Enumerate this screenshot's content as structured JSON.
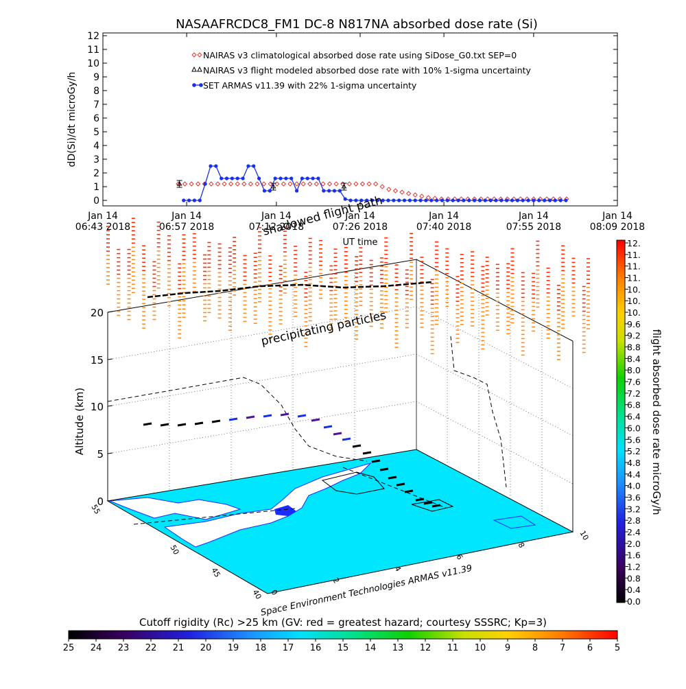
{
  "chart_data": [
    {
      "type": "line",
      "title": "NASAAFRCDC8_FM1 DC-8    N817NA absorbed dose rate (Si)",
      "ylabel": "dD(Si)/dt microGy/h",
      "xlabel": "UT time",
      "ylim": [
        0,
        12
      ],
      "yticks": [
        "0",
        "1",
        "2",
        "3",
        "4",
        "5",
        "6",
        "7",
        "8",
        "9",
        "10",
        "11",
        "12"
      ],
      "xlim_minutes": [
        403,
        489
      ],
      "xticks": [
        {
          "minute": 403,
          "line1": "Jan 14",
          "line2": "06:43 2018"
        },
        {
          "minute": 417,
          "line1": "Jan 14",
          "line2": "06:57 2018"
        },
        {
          "minute": 432,
          "line1": "Jan 14",
          "line2": "07:12 2018"
        },
        {
          "minute": 446,
          "line1": "Jan 14",
          "line2": "07:26 2018"
        },
        {
          "minute": 460,
          "line1": "Jan 14",
          "line2": "07:40 2018"
        },
        {
          "minute": 475,
          "line1": "Jan 14",
          "line2": "07:55 2018"
        },
        {
          "minute": 489,
          "line1": "Jan 14",
          "line2": "08:09 2018"
        }
      ],
      "legend_position": "top-center",
      "series": [
        {
          "name": "NAIRAS v3 climatological absorbed dose rate using SiDose_G0.txt SEP=0",
          "color": "#e8281e",
          "marker": "diamond",
          "x": [
            415.6,
            416.7,
            417.8,
            418.9,
            420.0,
            421.1,
            422.2,
            423.3,
            424.4,
            425.5,
            426.6,
            427.7,
            428.8,
            429.9,
            431.0,
            432.1,
            433.2,
            434.3,
            435.4,
            436.5,
            437.6,
            438.7,
            439.8,
            440.9,
            442.0,
            443.1,
            444.2,
            445.3,
            446.4,
            447.5,
            448.6,
            449.7,
            450.8,
            451.9,
            453.0,
            454.1,
            455.2,
            456.3,
            457.4,
            458.5,
            459.6,
            460.7,
            461.8,
            462.9,
            464.0,
            465.1,
            466.2,
            467.3,
            468.4,
            469.5,
            470.6,
            471.7,
            472.8,
            473.9,
            475.0,
            476.1,
            477.2,
            478.3,
            479.4,
            480.5
          ],
          "y": [
            1.2,
            1.2,
            1.2,
            1.2,
            1.2,
            1.2,
            1.2,
            1.2,
            1.2,
            1.2,
            1.2,
            1.2,
            1.2,
            1.2,
            1.2,
            1.2,
            1.2,
            1.2,
            1.2,
            1.2,
            1.2,
            1.2,
            1.2,
            1.2,
            1.2,
            1.2,
            1.2,
            1.2,
            1.2,
            1.2,
            1.2,
            1.0,
            0.8,
            0.7,
            0.6,
            0.5,
            0.4,
            0.3,
            0.2,
            0.15,
            0.1,
            0.1,
            0.1,
            0.1,
            0.1,
            0.1,
            0.1,
            0.1,
            0.1,
            0.1,
            0.1,
            0.1,
            0.1,
            0.1,
            0.1,
            0.1,
            0.1,
            0.1,
            0.1,
            0.1
          ]
        },
        {
          "name": "NAIRAS v3 flight modeled absorbed dose rate with 10% 1-sigma uncertainty",
          "color": "#000000",
          "marker": "triangle",
          "x": [
            415.8,
            431.5,
            443.3
          ],
          "y": [
            1.2,
            1.0,
            1.0
          ]
        },
        {
          "name": "SET ARMAS v11.39 with 22% 1-sigma uncertainty",
          "color": "#1830e6",
          "marker": "circle",
          "x": [
            416.5,
            417.4,
            418.3,
            419.2,
            420.1,
            421.0,
            421.9,
            422.8,
            423.7,
            424.6,
            425.5,
            426.4,
            427.3,
            428.2,
            429.1,
            430.0,
            430.9,
            431.8,
            432.7,
            433.6,
            434.5,
            435.4,
            436.3,
            437.2,
            438.1,
            439.0,
            439.9,
            440.8,
            441.7,
            442.6,
            443.5,
            444.4,
            445.3,
            446.2,
            447.1,
            448.0,
            448.9,
            449.8,
            450.7,
            451.6,
            452.5,
            453.4,
            454.3,
            455.2,
            456.1,
            457.0,
            457.9,
            458.8,
            459.7,
            460.6,
            461.5,
            462.4,
            463.3,
            464.2,
            465.1,
            466.0,
            466.9,
            467.8,
            468.7,
            469.6,
            470.5,
            471.4,
            472.3,
            473.2,
            474.1,
            475.0,
            475.9,
            476.8,
            477.7,
            478.6,
            479.5,
            480.4
          ],
          "y": [
            0,
            0,
            0,
            0,
            1.2,
            2.5,
            2.5,
            1.6,
            1.6,
            1.6,
            1.6,
            1.6,
            2.5,
            2.5,
            1.6,
            0.7,
            0.7,
            1.6,
            1.6,
            1.6,
            1.6,
            0.7,
            1.6,
            1.6,
            1.6,
            1.6,
            0.7,
            0.7,
            0.7,
            0.7,
            0.1,
            0,
            0,
            0,
            0,
            0,
            0,
            0,
            0,
            0,
            0,
            0,
            0,
            0,
            0,
            0,
            0,
            0,
            0,
            0,
            0,
            0,
            0,
            0,
            0,
            0,
            0,
            0,
            0,
            0,
            0,
            0,
            0,
            0,
            0,
            0,
            0,
            0,
            0,
            0,
            0,
            0
          ]
        }
      ]
    },
    {
      "type": "scatter",
      "title": "",
      "zlabel": "Altitude (km)",
      "zticks": [
        "0",
        "5",
        "10",
        "15",
        "20"
      ],
      "axis_label_x": [
        "0",
        "2",
        "4",
        "6",
        "8",
        "10"
      ],
      "axis_label_y": [
        "40",
        "45",
        "50",
        "55"
      ],
      "annotations": [
        "shadowed flight path",
        "precipitating particles"
      ],
      "footer": "Space Environment Technologies ARMAS v11.39",
      "colorbar": {
        "label": "flight absorbed dose rate microGy/h",
        "ticks": [
          "12.",
          "11.",
          "11.",
          "11.",
          "10.",
          "10.",
          "10.",
          "9.6",
          "9.2",
          "8.8",
          "8.4",
          "8.0",
          "7.6",
          "7.2",
          "6.8",
          "6.4",
          "6.0",
          "5.6",
          "5.2",
          "4.8",
          "4.4",
          "4.0",
          "3.6",
          "3.2",
          "2.8",
          "2.4",
          "2.0",
          "1.6",
          "1.2",
          "0.8",
          "0.4",
          "0.0"
        ]
      }
    },
    {
      "type": "heatmap",
      "title": "Cutoff rigidity (Rc) >25 km (GV: red = greatest hazard; courtesy SSSRC; Kp=3)",
      "ticks": [
        "25",
        "24",
        "23",
        "22",
        "21",
        "20",
        "19",
        "18",
        "17",
        "16",
        "15",
        "14",
        "13",
        "12",
        "11",
        "10",
        "9",
        "8",
        "7",
        "6",
        "5"
      ]
    }
  ],
  "colors": {
    "ocean": "#00e6ff",
    "land": "#ffffff",
    "precip_top": "#ff2a00",
    "precip_bottom": "#ff8c1a",
    "frame": "#000000"
  }
}
